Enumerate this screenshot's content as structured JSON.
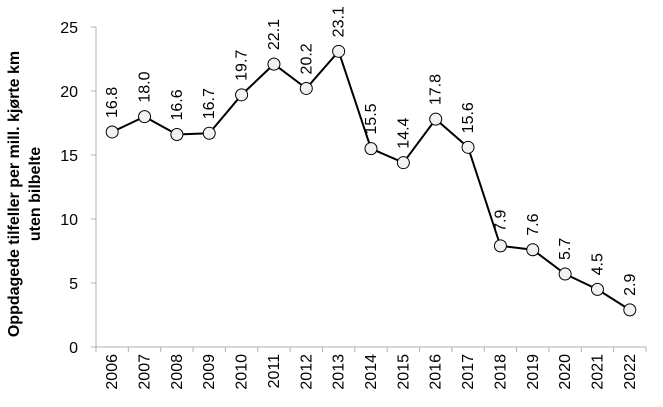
{
  "chart_data": {
    "type": "line",
    "title": "",
    "xlabel": "",
    "ylabel_lines": [
      "Oppdagede tilfeller per mill. kjørte km",
      "uten bilbelte"
    ],
    "categories": [
      "2006",
      "2007",
      "2008",
      "2009",
      "2010",
      "2011",
      "2012",
      "2013",
      "2014",
      "2015",
      "2016",
      "2017",
      "2018",
      "2019",
      "2020",
      "2021",
      "2022"
    ],
    "values": [
      16.8,
      18.0,
      16.6,
      16.7,
      19.7,
      22.1,
      20.2,
      23.1,
      15.5,
      14.4,
      17.8,
      15.6,
      7.9,
      7.6,
      5.7,
      4.5,
      2.9
    ],
    "data_labels": [
      "16.8",
      "18.0",
      "16.6",
      "16.7",
      "19.7",
      "22.1",
      "20.2",
      "23.1",
      "15.5",
      "14.4",
      "17.8",
      "15.6",
      "7.9",
      "7.6",
      "5.7",
      "4.5",
      "2.9"
    ],
    "ylim": [
      0,
      25
    ],
    "yticks": [
      0,
      5,
      10,
      15,
      20,
      25
    ],
    "grid": false,
    "line_color": "#000000",
    "marker_fill": "#f2f2f2"
  }
}
